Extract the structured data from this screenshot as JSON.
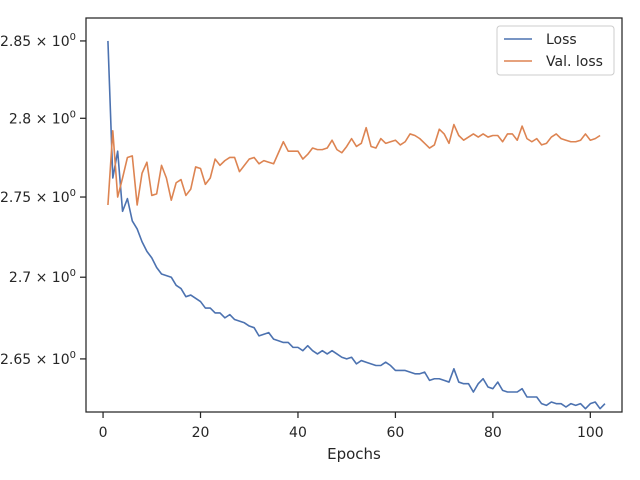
{
  "chart_data": {
    "type": "line",
    "title": "",
    "xlabel": "Epochs",
    "ylabel": "",
    "xlim": [
      -3.5,
      106.5
    ],
    "ylim": [
      2.618,
      2.865
    ],
    "yscale": "log",
    "grid": false,
    "legend_position": "top-right",
    "x_ticks": [
      0,
      20,
      40,
      60,
      80,
      100
    ],
    "x_tick_labels": [
      "0",
      "20",
      "40",
      "60",
      "80",
      "100"
    ],
    "y_ticks": [
      2.65,
      2.7,
      2.75,
      2.8,
      2.85
    ],
    "y_tick_labels": [
      "2.65",
      "2.7",
      "2.75",
      "2.8",
      "2.85"
    ],
    "y_tick_exponent": "0",
    "y_tick_multiplier": "× 10",
    "colors": {
      "loss": "#4c72b0",
      "val_loss": "#dd8452"
    },
    "series": [
      {
        "name": "Loss",
        "color": "#4c72b0",
        "values": [
          2.85,
          2.762,
          2.779,
          2.741,
          2.749,
          2.735,
          2.73,
          2.722,
          2.716,
          2.712,
          2.706,
          2.702,
          2.701,
          2.7,
          2.695,
          2.693,
          2.688,
          2.689,
          2.687,
          2.685,
          2.681,
          2.681,
          2.678,
          2.678,
          2.675,
          2.677,
          2.674,
          2.673,
          2.672,
          2.67,
          2.669,
          2.664,
          2.665,
          2.666,
          2.662,
          2.661,
          2.66,
          2.66,
          2.657,
          2.657,
          2.655,
          2.658,
          2.655,
          2.653,
          2.655,
          2.653,
          2.655,
          2.653,
          2.651,
          2.65,
          2.651,
          2.647,
          2.649,
          2.648,
          2.647,
          2.646,
          2.646,
          2.648,
          2.646,
          2.643,
          2.643,
          2.643,
          2.642,
          2.641,
          2.641,
          2.642,
          2.637,
          2.638,
          2.638,
          2.637,
          2.636,
          2.644,
          2.636,
          2.635,
          2.635,
          2.63,
          2.635,
          2.638,
          2.633,
          2.632,
          2.636,
          2.631,
          2.63,
          2.63,
          2.63,
          2.632,
          2.627,
          2.627,
          2.627,
          2.623,
          2.622,
          2.624,
          2.623,
          2.623,
          2.621,
          2.623,
          2.622,
          2.623,
          2.62,
          2.623,
          2.624,
          2.62,
          2.623
        ]
      },
      {
        "name": "Val. loss",
        "color": "#dd8452",
        "values": [
          2.745,
          2.792,
          2.75,
          2.762,
          2.775,
          2.776,
          2.745,
          2.765,
          2.772,
          2.751,
          2.752,
          2.77,
          2.762,
          2.748,
          2.759,
          2.761,
          2.751,
          2.755,
          2.769,
          2.768,
          2.758,
          2.762,
          2.774,
          2.77,
          2.773,
          2.775,
          2.775,
          2.766,
          2.77,
          2.774,
          2.775,
          2.771,
          2.773,
          2.772,
          2.771,
          2.778,
          2.785,
          2.779,
          2.779,
          2.779,
          2.774,
          2.777,
          2.781,
          2.78,
          2.78,
          2.781,
          2.786,
          2.78,
          2.778,
          2.782,
          2.787,
          2.782,
          2.784,
          2.794,
          2.782,
          2.781,
          2.787,
          2.784,
          2.785,
          2.786,
          2.783,
          2.785,
          2.79,
          2.789,
          2.787,
          2.784,
          2.781,
          2.783,
          2.793,
          2.79,
          2.784,
          2.796,
          2.789,
          2.786,
          2.788,
          2.79,
          2.788,
          2.79,
          2.788,
          2.789,
          2.789,
          2.785,
          2.79,
          2.79,
          2.786,
          2.795,
          2.787,
          2.785,
          2.787,
          2.783,
          2.784,
          2.788,
          2.79,
          2.787,
          2.786,
          2.785,
          2.785,
          2.786,
          2.79,
          2.786,
          2.787,
          2.789
        ]
      }
    ],
    "x_start": 1
  }
}
